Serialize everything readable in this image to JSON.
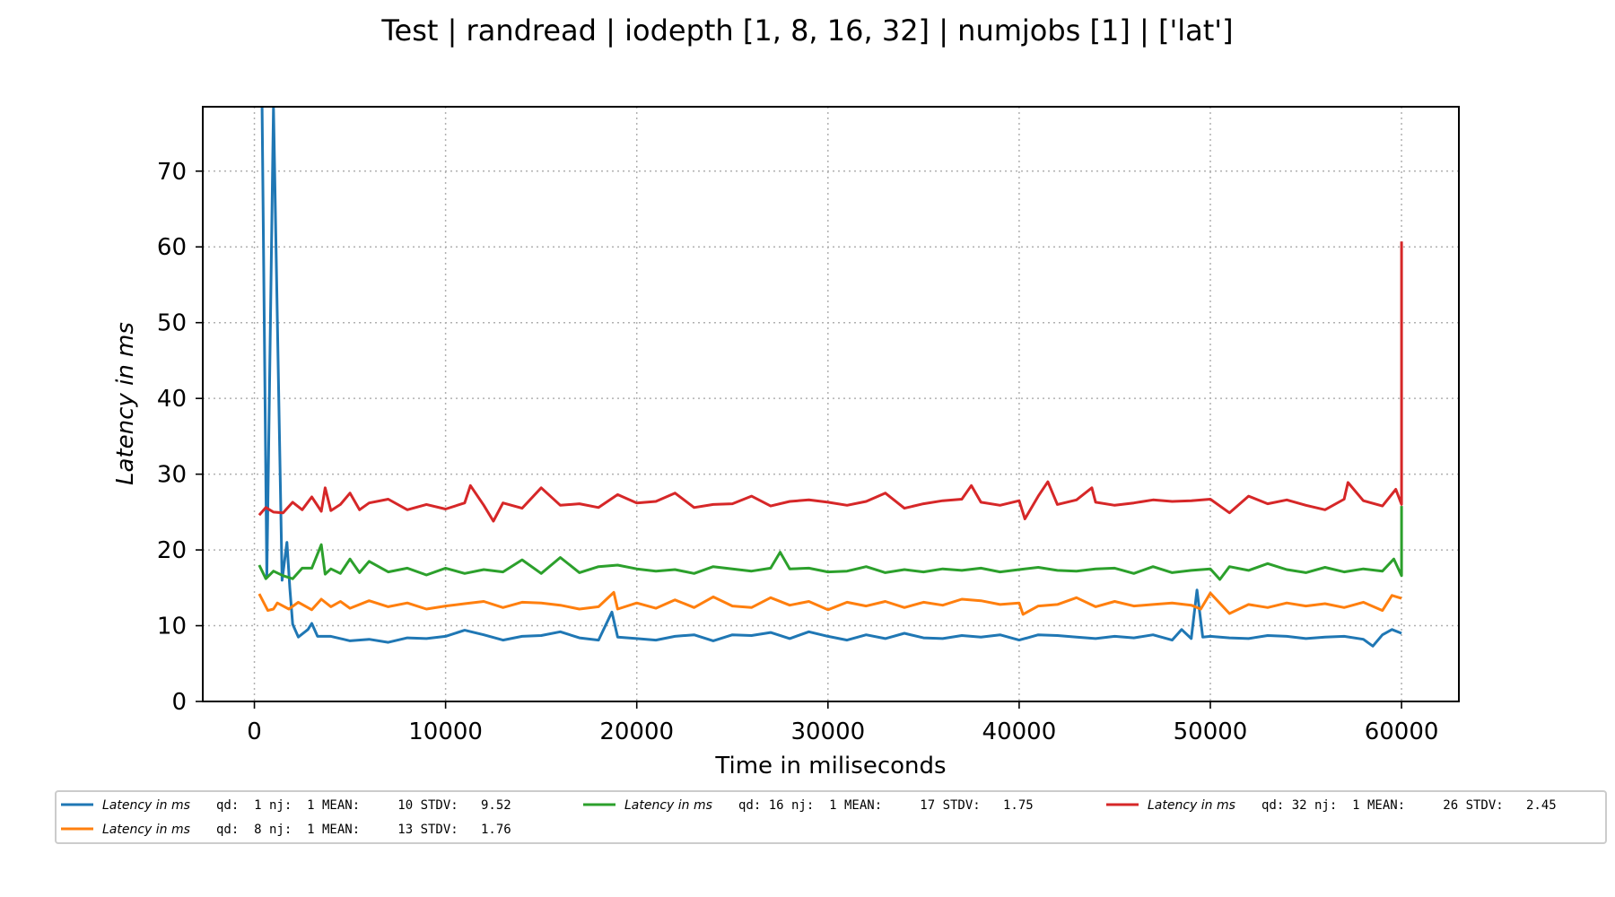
{
  "chart_data": {
    "type": "line",
    "title": "Test | randread | iodepth [1, 8, 16, 32] | numjobs [1] | ['lat']",
    "xlabel": "Time in miliseconds",
    "ylabel": "Latency in ms",
    "xlim": [
      -2700,
      63000
    ],
    "ylim": [
      0,
      78.5
    ],
    "xticks": [
      0,
      10000,
      20000,
      30000,
      40000,
      50000,
      60000
    ],
    "yticks": [
      0,
      10,
      20,
      30,
      40,
      50,
      60,
      70
    ],
    "grid": true,
    "legend_placement": "below",
    "series": [
      {
        "name": "Latency in ms",
        "stats": "qd:  1 nj:  1 MEAN:     10 STDV:   9.52",
        "color": "#1f77b4",
        "points": [
          [
            400,
            78.5
          ],
          [
            650,
            16.5
          ],
          [
            1000,
            78.5
          ],
          [
            1450,
            16.0
          ],
          [
            1700,
            21.0
          ],
          [
            1850,
            15.0
          ],
          [
            2000,
            10.2
          ],
          [
            2300,
            8.5
          ],
          [
            2800,
            9.5
          ],
          [
            3000,
            10.3
          ],
          [
            3300,
            8.6
          ],
          [
            4000,
            8.6
          ],
          [
            5000,
            8.0
          ],
          [
            6000,
            8.2
          ],
          [
            7000,
            7.8
          ],
          [
            8000,
            8.4
          ],
          [
            9000,
            8.3
          ],
          [
            10000,
            8.6
          ],
          [
            11000,
            9.4
          ],
          [
            12000,
            8.8
          ],
          [
            13000,
            8.1
          ],
          [
            14000,
            8.6
          ],
          [
            15000,
            8.7
          ],
          [
            16000,
            9.2
          ],
          [
            17000,
            8.4
          ],
          [
            18000,
            8.1
          ],
          [
            18700,
            11.8
          ],
          [
            19000,
            8.5
          ],
          [
            20000,
            8.3
          ],
          [
            21000,
            8.1
          ],
          [
            22000,
            8.6
          ],
          [
            23000,
            8.8
          ],
          [
            24000,
            8.0
          ],
          [
            25000,
            8.8
          ],
          [
            26000,
            8.7
          ],
          [
            27000,
            9.1
          ],
          [
            28000,
            8.3
          ],
          [
            29000,
            9.2
          ],
          [
            30000,
            8.6
          ],
          [
            31000,
            8.1
          ],
          [
            32000,
            8.8
          ],
          [
            33000,
            8.3
          ],
          [
            34000,
            9.0
          ],
          [
            35000,
            8.4
          ],
          [
            36000,
            8.3
          ],
          [
            37000,
            8.7
          ],
          [
            38000,
            8.5
          ],
          [
            39000,
            8.8
          ],
          [
            40000,
            8.1
          ],
          [
            41000,
            8.8
          ],
          [
            42000,
            8.7
          ],
          [
            43000,
            8.5
          ],
          [
            44000,
            8.3
          ],
          [
            45000,
            8.6
          ],
          [
            46000,
            8.4
          ],
          [
            47000,
            8.8
          ],
          [
            48000,
            8.1
          ],
          [
            48500,
            9.5
          ],
          [
            49000,
            8.3
          ],
          [
            49300,
            14.7
          ],
          [
            49600,
            8.5
          ],
          [
            50000,
            8.6
          ],
          [
            51000,
            8.4
          ],
          [
            52000,
            8.3
          ],
          [
            53000,
            8.7
          ],
          [
            54000,
            8.6
          ],
          [
            55000,
            8.3
          ],
          [
            56000,
            8.5
          ],
          [
            57000,
            8.6
          ],
          [
            58000,
            8.2
          ],
          [
            58500,
            7.3
          ],
          [
            59000,
            8.8
          ],
          [
            59500,
            9.5
          ],
          [
            60000,
            9.0
          ]
        ]
      },
      {
        "name": "Latency in ms",
        "stats": "qd:  8 nj:  1 MEAN:     13 STDV:   1.76",
        "color": "#ff7f0e",
        "points": [
          [
            250,
            14.2
          ],
          [
            700,
            12.0
          ],
          [
            1000,
            12.2
          ],
          [
            1200,
            13.0
          ],
          [
            1800,
            12.2
          ],
          [
            2300,
            13.1
          ],
          [
            3000,
            12.1
          ],
          [
            3500,
            13.5
          ],
          [
            4000,
            12.5
          ],
          [
            4500,
            13.2
          ],
          [
            5000,
            12.3
          ],
          [
            6000,
            13.3
          ],
          [
            7000,
            12.5
          ],
          [
            8000,
            13.0
          ],
          [
            9000,
            12.2
          ],
          [
            10000,
            12.6
          ],
          [
            11000,
            12.9
          ],
          [
            12000,
            13.2
          ],
          [
            13000,
            12.4
          ],
          [
            14000,
            13.1
          ],
          [
            15000,
            13.0
          ],
          [
            16000,
            12.7
          ],
          [
            17000,
            12.2
          ],
          [
            18000,
            12.5
          ],
          [
            18800,
            14.4
          ],
          [
            19000,
            12.2
          ],
          [
            20000,
            13.0
          ],
          [
            21000,
            12.3
          ],
          [
            22000,
            13.4
          ],
          [
            23000,
            12.4
          ],
          [
            24000,
            13.8
          ],
          [
            25000,
            12.6
          ],
          [
            26000,
            12.4
          ],
          [
            27000,
            13.7
          ],
          [
            28000,
            12.7
          ],
          [
            29000,
            13.2
          ],
          [
            30000,
            12.1
          ],
          [
            31000,
            13.1
          ],
          [
            32000,
            12.6
          ],
          [
            33000,
            13.2
          ],
          [
            34000,
            12.4
          ],
          [
            35000,
            13.1
          ],
          [
            36000,
            12.7
          ],
          [
            37000,
            13.5
          ],
          [
            38000,
            13.3
          ],
          [
            39000,
            12.8
          ],
          [
            40000,
            13.0
          ],
          [
            40200,
            11.5
          ],
          [
            41000,
            12.6
          ],
          [
            42000,
            12.8
          ],
          [
            43000,
            13.7
          ],
          [
            44000,
            12.5
          ],
          [
            45000,
            13.2
          ],
          [
            46000,
            12.6
          ],
          [
            47000,
            12.8
          ],
          [
            48000,
            13.0
          ],
          [
            49000,
            12.7
          ],
          [
            49500,
            12.2
          ],
          [
            50000,
            14.3
          ],
          [
            51000,
            11.6
          ],
          [
            52000,
            12.8
          ],
          [
            53000,
            12.4
          ],
          [
            54000,
            13.0
          ],
          [
            55000,
            12.6
          ],
          [
            56000,
            12.9
          ],
          [
            57000,
            12.4
          ],
          [
            58000,
            13.1
          ],
          [
            59000,
            12.0
          ],
          [
            59500,
            14.0
          ],
          [
            60000,
            13.6
          ]
        ]
      },
      {
        "name": "Latency in ms",
        "stats": "qd: 16 nj:  1 MEAN:     17 STDV:   1.75",
        "color": "#2ca02c",
        "points": [
          [
            250,
            18.0
          ],
          [
            600,
            16.2
          ],
          [
            1000,
            17.2
          ],
          [
            1500,
            16.6
          ],
          [
            2000,
            16.2
          ],
          [
            2500,
            17.6
          ],
          [
            3000,
            17.6
          ],
          [
            3500,
            20.7
          ],
          [
            3700,
            16.8
          ],
          [
            4000,
            17.5
          ],
          [
            4500,
            16.9
          ],
          [
            5000,
            18.8
          ],
          [
            5500,
            17.0
          ],
          [
            6000,
            18.5
          ],
          [
            7000,
            17.1
          ],
          [
            8000,
            17.6
          ],
          [
            9000,
            16.7
          ],
          [
            10000,
            17.6
          ],
          [
            11000,
            16.9
          ],
          [
            12000,
            17.4
          ],
          [
            13000,
            17.1
          ],
          [
            14000,
            18.7
          ],
          [
            15000,
            16.9
          ],
          [
            16000,
            19.0
          ],
          [
            17000,
            17.0
          ],
          [
            18000,
            17.8
          ],
          [
            19000,
            18.0
          ],
          [
            20000,
            17.5
          ],
          [
            21000,
            17.2
          ],
          [
            22000,
            17.4
          ],
          [
            23000,
            16.9
          ],
          [
            24000,
            17.8
          ],
          [
            25000,
            17.5
          ],
          [
            26000,
            17.2
          ],
          [
            27000,
            17.6
          ],
          [
            27500,
            19.7
          ],
          [
            28000,
            17.5
          ],
          [
            29000,
            17.6
          ],
          [
            30000,
            17.1
          ],
          [
            31000,
            17.2
          ],
          [
            32000,
            17.8
          ],
          [
            33000,
            17.0
          ],
          [
            34000,
            17.4
          ],
          [
            35000,
            17.1
          ],
          [
            36000,
            17.5
          ],
          [
            37000,
            17.3
          ],
          [
            38000,
            17.6
          ],
          [
            39000,
            17.1
          ],
          [
            40000,
            17.4
          ],
          [
            41000,
            17.7
          ],
          [
            42000,
            17.3
          ],
          [
            43000,
            17.2
          ],
          [
            44000,
            17.5
          ],
          [
            45000,
            17.6
          ],
          [
            46000,
            16.9
          ],
          [
            47000,
            17.8
          ],
          [
            48000,
            17.0
          ],
          [
            49000,
            17.3
          ],
          [
            50000,
            17.5
          ],
          [
            50500,
            16.1
          ],
          [
            51000,
            17.8
          ],
          [
            52000,
            17.3
          ],
          [
            53000,
            18.2
          ],
          [
            54000,
            17.4
          ],
          [
            55000,
            17.0
          ],
          [
            56000,
            17.7
          ],
          [
            57000,
            17.1
          ],
          [
            58000,
            17.5
          ],
          [
            59000,
            17.2
          ],
          [
            59600,
            18.8
          ],
          [
            60000,
            16.6
          ],
          [
            60000,
            25.8
          ]
        ]
      },
      {
        "name": "Latency in ms",
        "stats": "qd: 32 nj:  1 MEAN:     26 STDV:   2.45",
        "color": "#d62728",
        "points": [
          [
            250,
            24.6
          ],
          [
            600,
            25.6
          ],
          [
            1000,
            25.0
          ],
          [
            1500,
            24.9
          ],
          [
            2000,
            26.3
          ],
          [
            2500,
            25.3
          ],
          [
            3000,
            27.0
          ],
          [
            3500,
            25.1
          ],
          [
            3700,
            28.2
          ],
          [
            4000,
            25.2
          ],
          [
            4500,
            26.0
          ],
          [
            5000,
            27.5
          ],
          [
            5500,
            25.3
          ],
          [
            6000,
            26.2
          ],
          [
            7000,
            26.7
          ],
          [
            8000,
            25.3
          ],
          [
            9000,
            26.0
          ],
          [
            10000,
            25.4
          ],
          [
            11000,
            26.2
          ],
          [
            11300,
            28.5
          ],
          [
            12000,
            25.9
          ],
          [
            12500,
            23.8
          ],
          [
            13000,
            26.2
          ],
          [
            14000,
            25.5
          ],
          [
            15000,
            28.2
          ],
          [
            16000,
            25.9
          ],
          [
            17000,
            26.1
          ],
          [
            18000,
            25.6
          ],
          [
            19000,
            27.3
          ],
          [
            20000,
            26.2
          ],
          [
            21000,
            26.4
          ],
          [
            22000,
            27.5
          ],
          [
            23000,
            25.6
          ],
          [
            24000,
            26.0
          ],
          [
            25000,
            26.1
          ],
          [
            26000,
            27.1
          ],
          [
            27000,
            25.8
          ],
          [
            28000,
            26.4
          ],
          [
            29000,
            26.6
          ],
          [
            30000,
            26.3
          ],
          [
            31000,
            25.9
          ],
          [
            32000,
            26.4
          ],
          [
            33000,
            27.5
          ],
          [
            34000,
            25.5
          ],
          [
            35000,
            26.1
          ],
          [
            36000,
            26.5
          ],
          [
            37000,
            26.7
          ],
          [
            37500,
            28.5
          ],
          [
            38000,
            26.3
          ],
          [
            39000,
            25.9
          ],
          [
            40000,
            26.5
          ],
          [
            40300,
            24.1
          ],
          [
            41000,
            27.1
          ],
          [
            41500,
            29.0
          ],
          [
            42000,
            26.0
          ],
          [
            43000,
            26.6
          ],
          [
            43800,
            28.2
          ],
          [
            44000,
            26.3
          ],
          [
            45000,
            25.9
          ],
          [
            46000,
            26.2
          ],
          [
            47000,
            26.6
          ],
          [
            48000,
            26.4
          ],
          [
            49000,
            26.5
          ],
          [
            50000,
            26.7
          ],
          [
            51000,
            24.9
          ],
          [
            52000,
            27.1
          ],
          [
            53000,
            26.1
          ],
          [
            54000,
            26.6
          ],
          [
            55000,
            25.9
          ],
          [
            56000,
            25.3
          ],
          [
            57000,
            26.7
          ],
          [
            57200,
            28.9
          ],
          [
            58000,
            26.5
          ],
          [
            59000,
            25.8
          ],
          [
            59700,
            28.0
          ],
          [
            60000,
            26.0
          ],
          [
            60000,
            60.7
          ]
        ]
      }
    ]
  }
}
